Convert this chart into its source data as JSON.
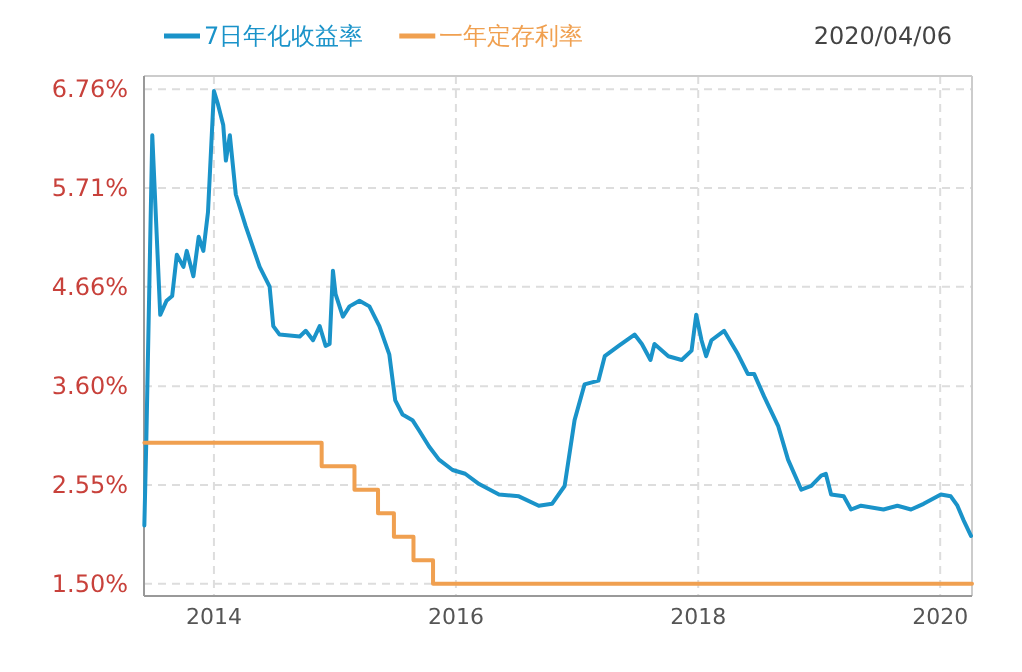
{
  "chart_data": {
    "type": "line",
    "xlim": [
      "2013-06-04",
      "2020-04-06"
    ],
    "xticks": [
      {
        "value": "2014-01-01",
        "label": "2014"
      },
      {
        "value": "2016-01-01",
        "label": "2016"
      },
      {
        "value": "2018-01-01",
        "label": "2018"
      },
      {
        "value": "2020-01-01",
        "label": "2020"
      }
    ],
    "ylim": [
      1.37,
      6.9
    ],
    "yticks": [
      {
        "value": 1.5,
        "label": "1.50%"
      },
      {
        "value": 2.55,
        "label": "2.55%"
      },
      {
        "value": 3.6,
        "label": "3.60%"
      },
      {
        "value": 4.66,
        "label": "4.66%"
      },
      {
        "value": 5.71,
        "label": "5.71%"
      },
      {
        "value": 6.76,
        "label": "6.76%"
      }
    ],
    "grid": true,
    "legend": "top left",
    "annotations": [
      "2020/04/06"
    ],
    "series": [
      {
        "name": "7日年化收益率",
        "color": "#1a93c9",
        "type": "line",
        "x": [
          "2013-06-05",
          "2013-06-11",
          "2013-06-29",
          "2013-07-23",
          "2013-08-11",
          "2013-08-28",
          "2013-09-11",
          "2013-10-01",
          "2013-10-11",
          "2013-10-31",
          "2013-11-16",
          "2013-11-30",
          "2013-12-14",
          "2014-01-01",
          "2014-01-13",
          "2014-01-29",
          "2014-02-06",
          "2014-02-18",
          "2014-03-08",
          "2014-04-07",
          "2014-05-19",
          "2014-06-18",
          "2014-06-29",
          "2014-07-18",
          "2014-09-17",
          "2014-10-05",
          "2014-10-27",
          "2014-11-16",
          "2014-12-04",
          "2014-12-16",
          "2014-12-26",
          "2015-01-03",
          "2015-01-25",
          "2015-02-14",
          "2015-03-16",
          "2015-04-15",
          "2015-05-15",
          "2015-06-14",
          "2015-07-02",
          "2015-07-24",
          "2015-08-23",
          "2015-09-12",
          "2015-10-12",
          "2015-11-11",
          "2015-12-22",
          "2016-01-29",
          "2016-03-11",
          "2016-05-10",
          "2016-07-09",
          "2016-09-07",
          "2016-10-17",
          "2016-11-24",
          "2016-12-24",
          "2017-01-23",
          "2017-03-06",
          "2017-03-25",
          "2017-05-06",
          "2017-06-23",
          "2017-07-15",
          "2017-08-10",
          "2017-08-22",
          "2017-10-03",
          "2017-11-12",
          "2017-12-12",
          "2017-12-26",
          "2018-01-11",
          "2018-01-25",
          "2018-02-10",
          "2018-03-20",
          "2018-05-01",
          "2018-05-31",
          "2018-06-19",
          "2018-07-19",
          "2018-08-30",
          "2018-09-29",
          "2018-11-08",
          "2018-12-08",
          "2019-01-07",
          "2019-01-21",
          "2019-02-06",
          "2019-03-16",
          "2019-04-07",
          "2019-05-07",
          "2019-07-14",
          "2019-08-25",
          "2019-10-05",
          "2019-11-12",
          "2020-01-03",
          "2020-02-02",
          "2020-02-22",
          "2020-03-11",
          "2020-04-03"
        ],
        "values": [
          2.12,
          3.03,
          6.27,
          4.36,
          4.51,
          4.56,
          5.0,
          4.87,
          5.04,
          4.77,
          5.19,
          5.04,
          5.45,
          6.74,
          6.6,
          6.38,
          6.0,
          6.27,
          5.64,
          5.3,
          4.87,
          4.66,
          4.24,
          4.15,
          4.13,
          4.19,
          4.09,
          4.24,
          4.03,
          4.05,
          4.83,
          4.58,
          4.34,
          4.45,
          4.51,
          4.45,
          4.24,
          3.94,
          3.45,
          3.3,
          3.24,
          3.13,
          2.96,
          2.82,
          2.71,
          2.67,
          2.56,
          2.45,
          2.43,
          2.33,
          2.35,
          2.54,
          3.24,
          3.62,
          3.66,
          3.92,
          4.03,
          4.15,
          4.05,
          3.88,
          4.05,
          3.92,
          3.88,
          3.98,
          4.36,
          4.09,
          3.92,
          4.09,
          4.19,
          3.94,
          3.73,
          3.73,
          3.49,
          3.18,
          2.82,
          2.5,
          2.54,
          2.65,
          2.67,
          2.45,
          2.43,
          2.29,
          2.33,
          2.29,
          2.33,
          2.29,
          2.35,
          2.45,
          2.43,
          2.33,
          2.18,
          2.01
        ]
      },
      {
        "name": "一年定存利率",
        "color": "#f0a050",
        "type": "step",
        "x": [
          "2013-06-05",
          "2014-11-22",
          "2015-03-01",
          "2015-05-11",
          "2015-06-28",
          "2015-08-26",
          "2015-10-24",
          "2020-04-06"
        ],
        "values": [
          3.0,
          2.75,
          2.5,
          2.25,
          2.0,
          1.75,
          1.5,
          1.5
        ]
      }
    ]
  }
}
